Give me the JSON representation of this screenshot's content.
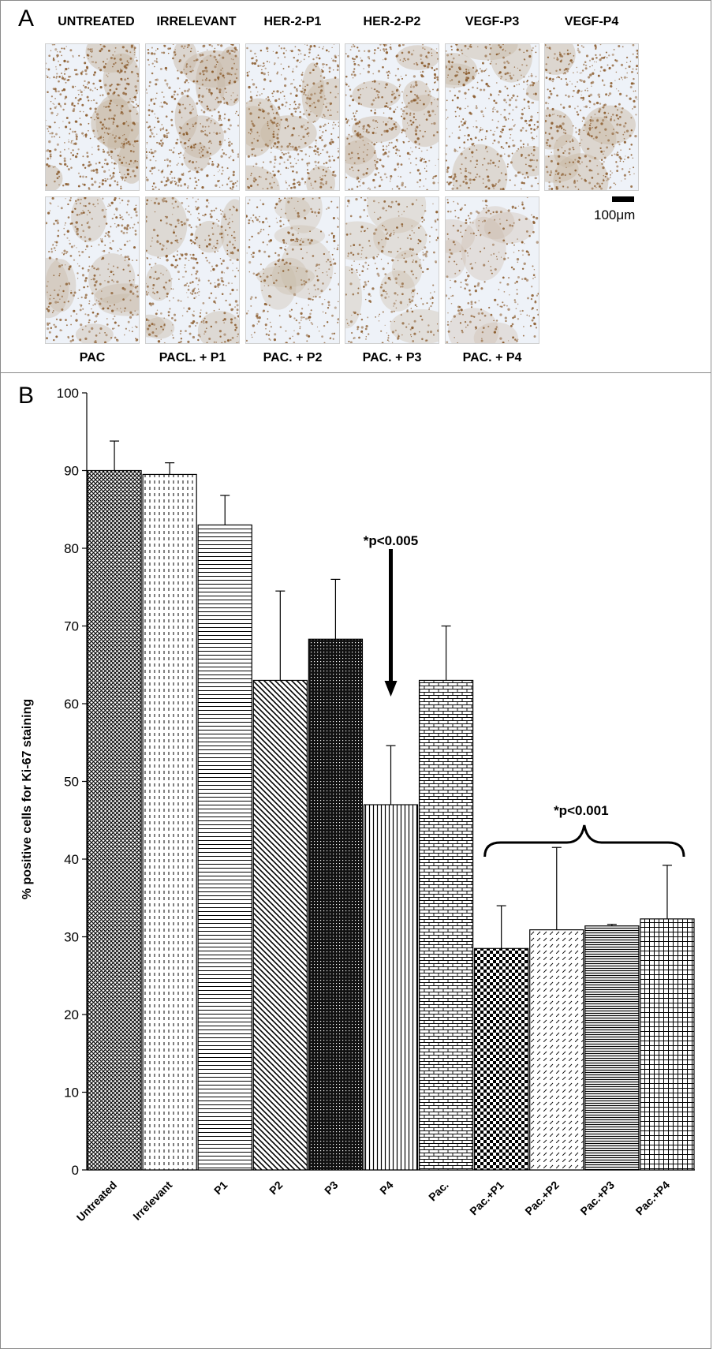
{
  "panel_a": {
    "letter": "A",
    "top_labels": [
      "UNTREATED",
      "IRRELEVANT",
      "HER-2-P1",
      "HER-2-P2",
      "VEGF-P3",
      "VEGF-P4"
    ],
    "bottom_labels": [
      "PAC",
      "PACL. + P1",
      "PAC. + P2",
      "PAC. + P3",
      "PAC. + P4"
    ],
    "scale_label": "100μm",
    "stain_color": "#8a5a2b",
    "background_color": "#eef2f8",
    "tiles_top": [
      {
        "name": "untreated",
        "staining_density": 0.55
      },
      {
        "name": "irrelevant",
        "staining_density": 0.52
      },
      {
        "name": "her-2-p1",
        "staining_density": 0.5
      },
      {
        "name": "her-2-p2",
        "staining_density": 0.45
      },
      {
        "name": "vegf-p3",
        "staining_density": 0.42
      },
      {
        "name": "vegf-p4",
        "staining_density": 0.48
      }
    ],
    "tiles_bottom": [
      {
        "name": "pac",
        "staining_density": 0.35
      },
      {
        "name": "pacl-p1",
        "staining_density": 0.38
      },
      {
        "name": "pac-p2",
        "staining_density": 0.2
      },
      {
        "name": "pac-p3",
        "staining_density": 0.22
      },
      {
        "name": "pac-p4",
        "staining_density": 0.18
      }
    ]
  },
  "panel_b": {
    "letter": "B"
  },
  "chart_data": {
    "type": "bar",
    "title": "",
    "xlabel": "",
    "ylabel": "% positive cells for Ki-67 staining",
    "ylim": [
      0,
      100
    ],
    "yticks": [
      0,
      10,
      20,
      30,
      40,
      50,
      60,
      70,
      80,
      90,
      100
    ],
    "grid": false,
    "categories": [
      "Untreated",
      "Irrelevant",
      "P1",
      "P2",
      "P3",
      "P4",
      "Pac.",
      "Pac.+P1",
      "Pac.+P2",
      "Pac.+P3",
      "Pac.+P4"
    ],
    "values": [
      90,
      89.5,
      83,
      63,
      68.3,
      47,
      63,
      28.5,
      30.9,
      31.4,
      32.3
    ],
    "error_upper": [
      3.8,
      1.5,
      3.8,
      11.5,
      7.7,
      7.6,
      7,
      5.5,
      10.6,
      0.2,
      6.9
    ],
    "patterns": [
      "crosshatch-dense",
      "dashed-vertical",
      "horizontal-lines",
      "diagonal-lines",
      "dark-crosshatch",
      "vertical-lines",
      "brick",
      "checker",
      "dashed-diagonal",
      "horizontal-lines-dense",
      "grid"
    ],
    "annotations": [
      {
        "text": "*p<0.005",
        "target": "P4"
      },
      {
        "text": "*p<0.001",
        "target": "Pac.+P1 to Pac.+P4"
      }
    ]
  }
}
